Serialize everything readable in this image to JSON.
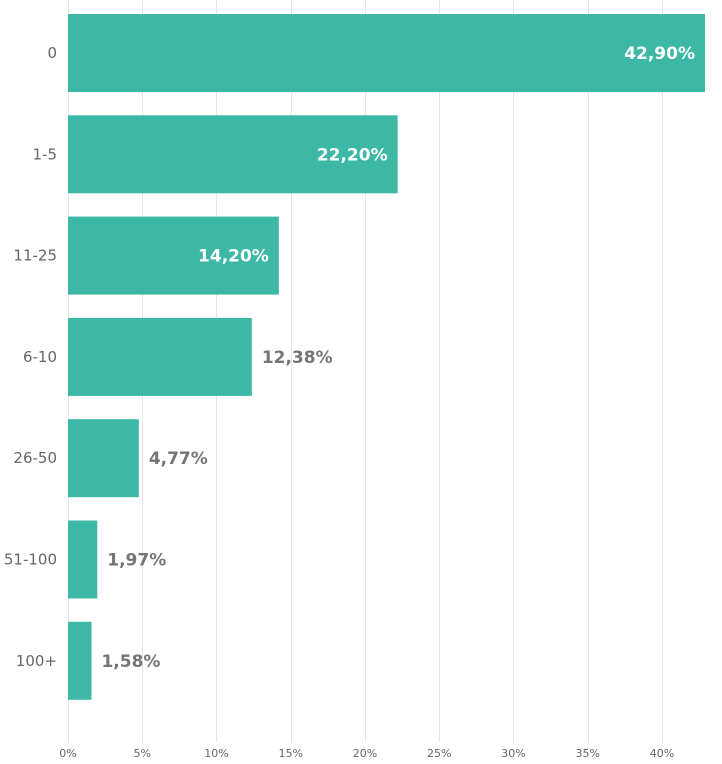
{
  "colors": {
    "bar": "#3db8a6",
    "label_outside": "#757575",
    "label_inside": "#ffffff",
    "axis_text": "#666666",
    "grid": "#e6e6e6"
  },
  "chart_data": {
    "type": "bar",
    "orientation": "horizontal",
    "categories": [
      "0",
      "1-5",
      "11-25",
      "6-10",
      "26-50",
      "51-100",
      "100+"
    ],
    "values": [
      42.9,
      22.2,
      14.2,
      12.38,
      4.77,
      1.97,
      1.58
    ],
    "value_labels": [
      "42,90%",
      "22,20%",
      "14,20%",
      "12,38%",
      "4,77%",
      "1,97%",
      "1,58%"
    ],
    "x_ticks": [
      0,
      5,
      10,
      15,
      20,
      25,
      30,
      35,
      40
    ],
    "x_tick_labels": [
      "0%",
      "5%",
      "10%",
      "15%",
      "20%",
      "25%",
      "30%",
      "35%",
      "40%"
    ],
    "xlim": [
      0,
      42.9
    ],
    "grid": true,
    "title": "",
    "xlabel": "",
    "ylabel": ""
  }
}
